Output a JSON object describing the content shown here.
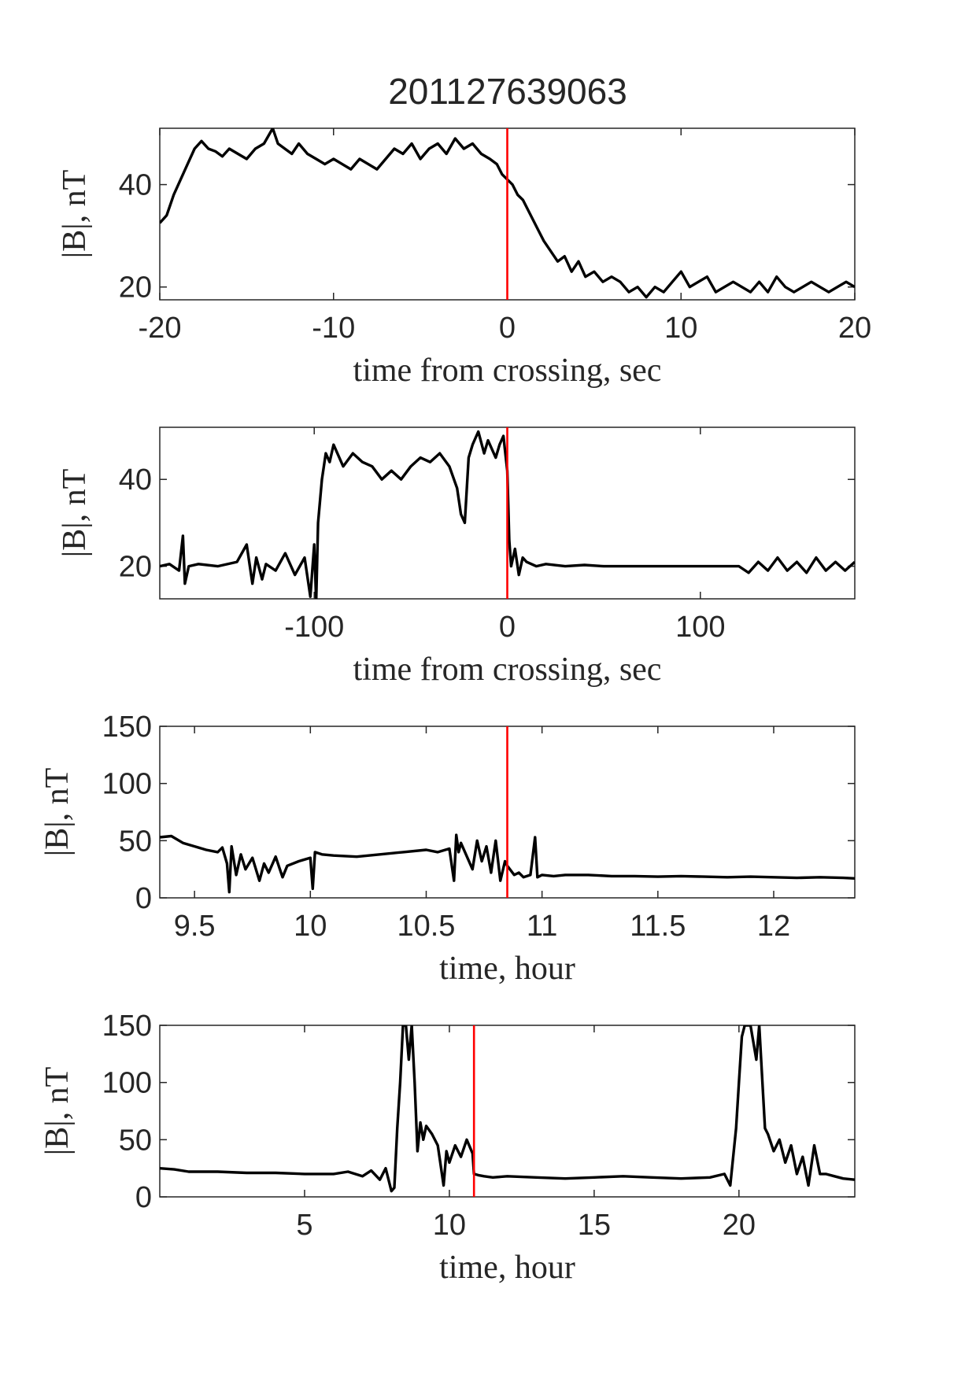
{
  "figure_title": "201127639063",
  "chart_data": [
    {
      "type": "line",
      "title": "",
      "xlabel": "time from crossing, sec",
      "ylabel": "|B|, nT",
      "xlim": [
        -20,
        20
      ],
      "ylim": [
        17.5,
        51
      ],
      "xticks": [
        -20,
        -10,
        0,
        10,
        20
      ],
      "xtick_labels": [
        "-20",
        "-10",
        "0",
        "10",
        "20"
      ],
      "yticks": [
        20,
        40
      ],
      "ytick_labels": [
        "20",
        "40"
      ],
      "marker_x": 0,
      "marker_color": "#ff0000",
      "line_color": "#000000",
      "series": [
        {
          "name": "|B|",
          "x": [
            -20,
            -19.6,
            -19.2,
            -18.8,
            -18.4,
            -18,
            -17.6,
            -17.2,
            -16.8,
            -16.4,
            -16,
            -15.5,
            -15,
            -14.5,
            -14,
            -13.5,
            -13.2,
            -12.8,
            -12.4,
            -12,
            -11.5,
            -11,
            -10.5,
            -10,
            -9.5,
            -9,
            -8.5,
            -8,
            -7.5,
            -7,
            -6.5,
            -6,
            -5.5,
            -5,
            -4.5,
            -4,
            -3.5,
            -3,
            -2.5,
            -2,
            -1.5,
            -1,
            -0.6,
            -0.3,
            0,
            0.3,
            0.6,
            0.9,
            1.2,
            1.5,
            1.8,
            2.1,
            2.5,
            2.9,
            3.3,
            3.7,
            4.1,
            4.5,
            5,
            5.5,
            6,
            6.5,
            7,
            7.5,
            8,
            8.5,
            9,
            9.5,
            10,
            10.5,
            11,
            11.5,
            12,
            12.5,
            13,
            13.5,
            14,
            14.5,
            15,
            15.5,
            16,
            16.5,
            17,
            17.5,
            18,
            18.5,
            19,
            19.5,
            20
          ],
          "y": [
            32.5,
            34,
            38,
            41,
            44,
            47,
            48.5,
            47,
            46.5,
            45.5,
            47,
            46,
            45,
            47,
            48,
            51,
            48,
            47,
            46,
            48,
            46,
            45,
            44,
            45,
            44,
            43,
            45,
            44,
            43,
            45,
            47,
            46,
            48,
            45,
            47,
            48,
            46,
            49,
            47,
            48,
            46,
            45,
            44,
            42,
            41,
            40,
            38,
            37,
            35,
            33,
            31,
            29,
            27,
            25,
            26,
            23,
            25,
            22,
            23,
            21,
            22,
            21,
            19,
            20,
            18,
            20,
            19,
            21,
            23,
            20,
            21,
            22,
            19,
            20,
            21,
            20,
            19,
            21,
            19,
            22,
            20,
            19,
            20,
            21,
            20,
            19,
            20,
            21,
            20
          ]
        }
      ]
    },
    {
      "type": "line",
      "title": "",
      "xlabel": "time from crossing, sec",
      "ylabel": "|B|, nT",
      "xlim": [
        -180,
        180
      ],
      "ylim": [
        12.5,
        52
      ],
      "xticks": [
        -100,
        0,
        100
      ],
      "xtick_labels": [
        "-100",
        "0",
        "100"
      ],
      "yticks": [
        20,
        40
      ],
      "ytick_labels": [
        "20",
        "40"
      ],
      "marker_x": 0,
      "marker_color": "#ff0000",
      "line_color": "#000000",
      "series": [
        {
          "name": "|B|",
          "x": [
            -180,
            -175,
            -170,
            -168,
            -167,
            -165,
            -160,
            -150,
            -140,
            -135,
            -132,
            -130,
            -127,
            -125,
            -120,
            -115,
            -110,
            -105,
            -102,
            -100,
            -99,
            -98,
            -96,
            -94,
            -92,
            -90,
            -85,
            -80,
            -75,
            -70,
            -65,
            -60,
            -55,
            -50,
            -45,
            -40,
            -35,
            -30,
            -26,
            -24,
            -22,
            -20,
            -18,
            -15,
            -12,
            -10,
            -8,
            -6,
            -4,
            -2,
            -1,
            0,
            1,
            2,
            4,
            6,
            8,
            10,
            15,
            20,
            30,
            40,
            50,
            60,
            80,
            100,
            110,
            120,
            125,
            130,
            135,
            140,
            145,
            150,
            155,
            160,
            165,
            170,
            175,
            180
          ],
          "y": [
            20,
            20.5,
            19,
            27,
            16,
            20,
            20.5,
            20,
            21,
            25,
            16,
            22,
            17,
            20.5,
            19,
            23,
            18,
            22,
            13,
            25,
            12,
            30,
            40,
            46,
            44,
            48,
            43,
            46,
            44,
            43,
            40,
            42,
            40,
            43,
            45,
            44,
            46,
            43,
            38,
            32,
            30,
            45,
            48,
            51,
            46,
            49,
            47,
            45,
            48,
            50,
            46,
            42,
            26,
            20,
            24,
            18,
            22,
            21,
            20,
            20.5,
            20,
            20.3,
            20,
            20,
            20,
            20,
            20,
            20,
            18.5,
            21,
            19,
            22,
            19,
            21,
            18.5,
            22,
            19,
            21,
            19,
            21
          ]
        }
      ]
    },
    {
      "type": "line",
      "title": "",
      "xlabel": "time, hour",
      "ylabel": "|B|, nT",
      "xlim": [
        9.35,
        12.35
      ],
      "ylim": [
        0,
        150
      ],
      "xticks": [
        9.5,
        10,
        10.5,
        11,
        11.5,
        12
      ],
      "xtick_labels": [
        "9.5",
        "10",
        "10.5",
        "11",
        "11.5",
        "12"
      ],
      "yticks": [
        0,
        50,
        100,
        150
      ],
      "ytick_labels": [
        "0",
        "50",
        "100",
        "150"
      ],
      "marker_x": 10.85,
      "marker_color": "#ff0000",
      "line_color": "#000000",
      "series": [
        {
          "name": "|B|",
          "x": [
            9.35,
            9.4,
            9.45,
            9.5,
            9.55,
            9.6,
            9.62,
            9.64,
            9.65,
            9.66,
            9.68,
            9.7,
            9.72,
            9.75,
            9.78,
            9.8,
            9.82,
            9.85,
            9.88,
            9.9,
            9.95,
            10,
            10.01,
            10.02,
            10.05,
            10.1,
            10.2,
            10.3,
            10.4,
            10.5,
            10.55,
            10.6,
            10.62,
            10.63,
            10.64,
            10.65,
            10.7,
            10.72,
            10.74,
            10.76,
            10.78,
            10.8,
            10.82,
            10.84,
            10.85,
            10.88,
            10.9,
            10.92,
            10.95,
            10.97,
            10.98,
            11,
            11.05,
            11.1,
            11.2,
            11.3,
            11.4,
            11.5,
            11.6,
            11.7,
            11.8,
            11.9,
            12,
            12.1,
            12.2,
            12.3,
            12.35
          ],
          "y": [
            53,
            54,
            48,
            45,
            42,
            40,
            44,
            30,
            5,
            45,
            20,
            38,
            25,
            35,
            15,
            30,
            22,
            36,
            18,
            28,
            32,
            35,
            8,
            40,
            38,
            37,
            36,
            38,
            40,
            42,
            40,
            43,
            15,
            55,
            40,
            48,
            25,
            50,
            32,
            45,
            22,
            50,
            15,
            32,
            28,
            20,
            22,
            18,
            20,
            53,
            18,
            20,
            19,
            20,
            20,
            19,
            19,
            18.5,
            19,
            18.5,
            18,
            18.5,
            18,
            17.5,
            18,
            17.5,
            17
          ]
        }
      ]
    },
    {
      "type": "line",
      "title": "",
      "xlabel": "time, hour",
      "ylabel": "|B|, nT",
      "xlim": [
        0,
        24
      ],
      "ylim": [
        0,
        150
      ],
      "xticks": [
        5,
        10,
        15,
        20
      ],
      "xtick_labels": [
        "5",
        "10",
        "15",
        "20"
      ],
      "yticks": [
        0,
        50,
        100,
        150
      ],
      "ytick_labels": [
        "0",
        "50",
        "100",
        "150"
      ],
      "marker_x": 10.85,
      "marker_color": "#ff0000",
      "line_color": "#000000",
      "series": [
        {
          "name": "|B|",
          "x": [
            0,
            0.5,
            1,
            2,
            3,
            4,
            5,
            6,
            6.5,
            7,
            7.3,
            7.6,
            7.8,
            8,
            8.1,
            8.2,
            8.3,
            8.4,
            8.5,
            8.6,
            8.7,
            8.8,
            8.9,
            9,
            9.1,
            9.2,
            9.4,
            9.6,
            9.8,
            9.9,
            10,
            10.2,
            10.4,
            10.6,
            10.8,
            10.85,
            11,
            11.2,
            11.5,
            12,
            13,
            14,
            15,
            16,
            17,
            18,
            19,
            19.5,
            19.7,
            19.9,
            20,
            20.1,
            20.2,
            20.4,
            20.6,
            20.7,
            20.9,
            21,
            21.2,
            21.4,
            21.6,
            21.8,
            22,
            22.2,
            22.4,
            22.6,
            22.8,
            23,
            23.3,
            23.6,
            24
          ],
          "y": [
            25,
            24,
            22,
            22,
            21,
            21,
            20,
            20,
            22,
            18,
            23,
            15,
            25,
            5,
            8,
            60,
            100,
            150,
            150,
            120,
            150,
            100,
            40,
            65,
            50,
            62,
            55,
            45,
            10,
            40,
            30,
            45,
            35,
            50,
            38,
            20,
            19,
            18,
            17,
            18,
            17,
            16,
            17,
            18,
            17,
            16,
            17,
            20,
            10,
            60,
            100,
            140,
            150,
            150,
            120,
            150,
            60,
            55,
            40,
            50,
            30,
            45,
            20,
            35,
            10,
            45,
            20,
            20,
            18,
            16,
            15
          ]
        }
      ]
    }
  ]
}
